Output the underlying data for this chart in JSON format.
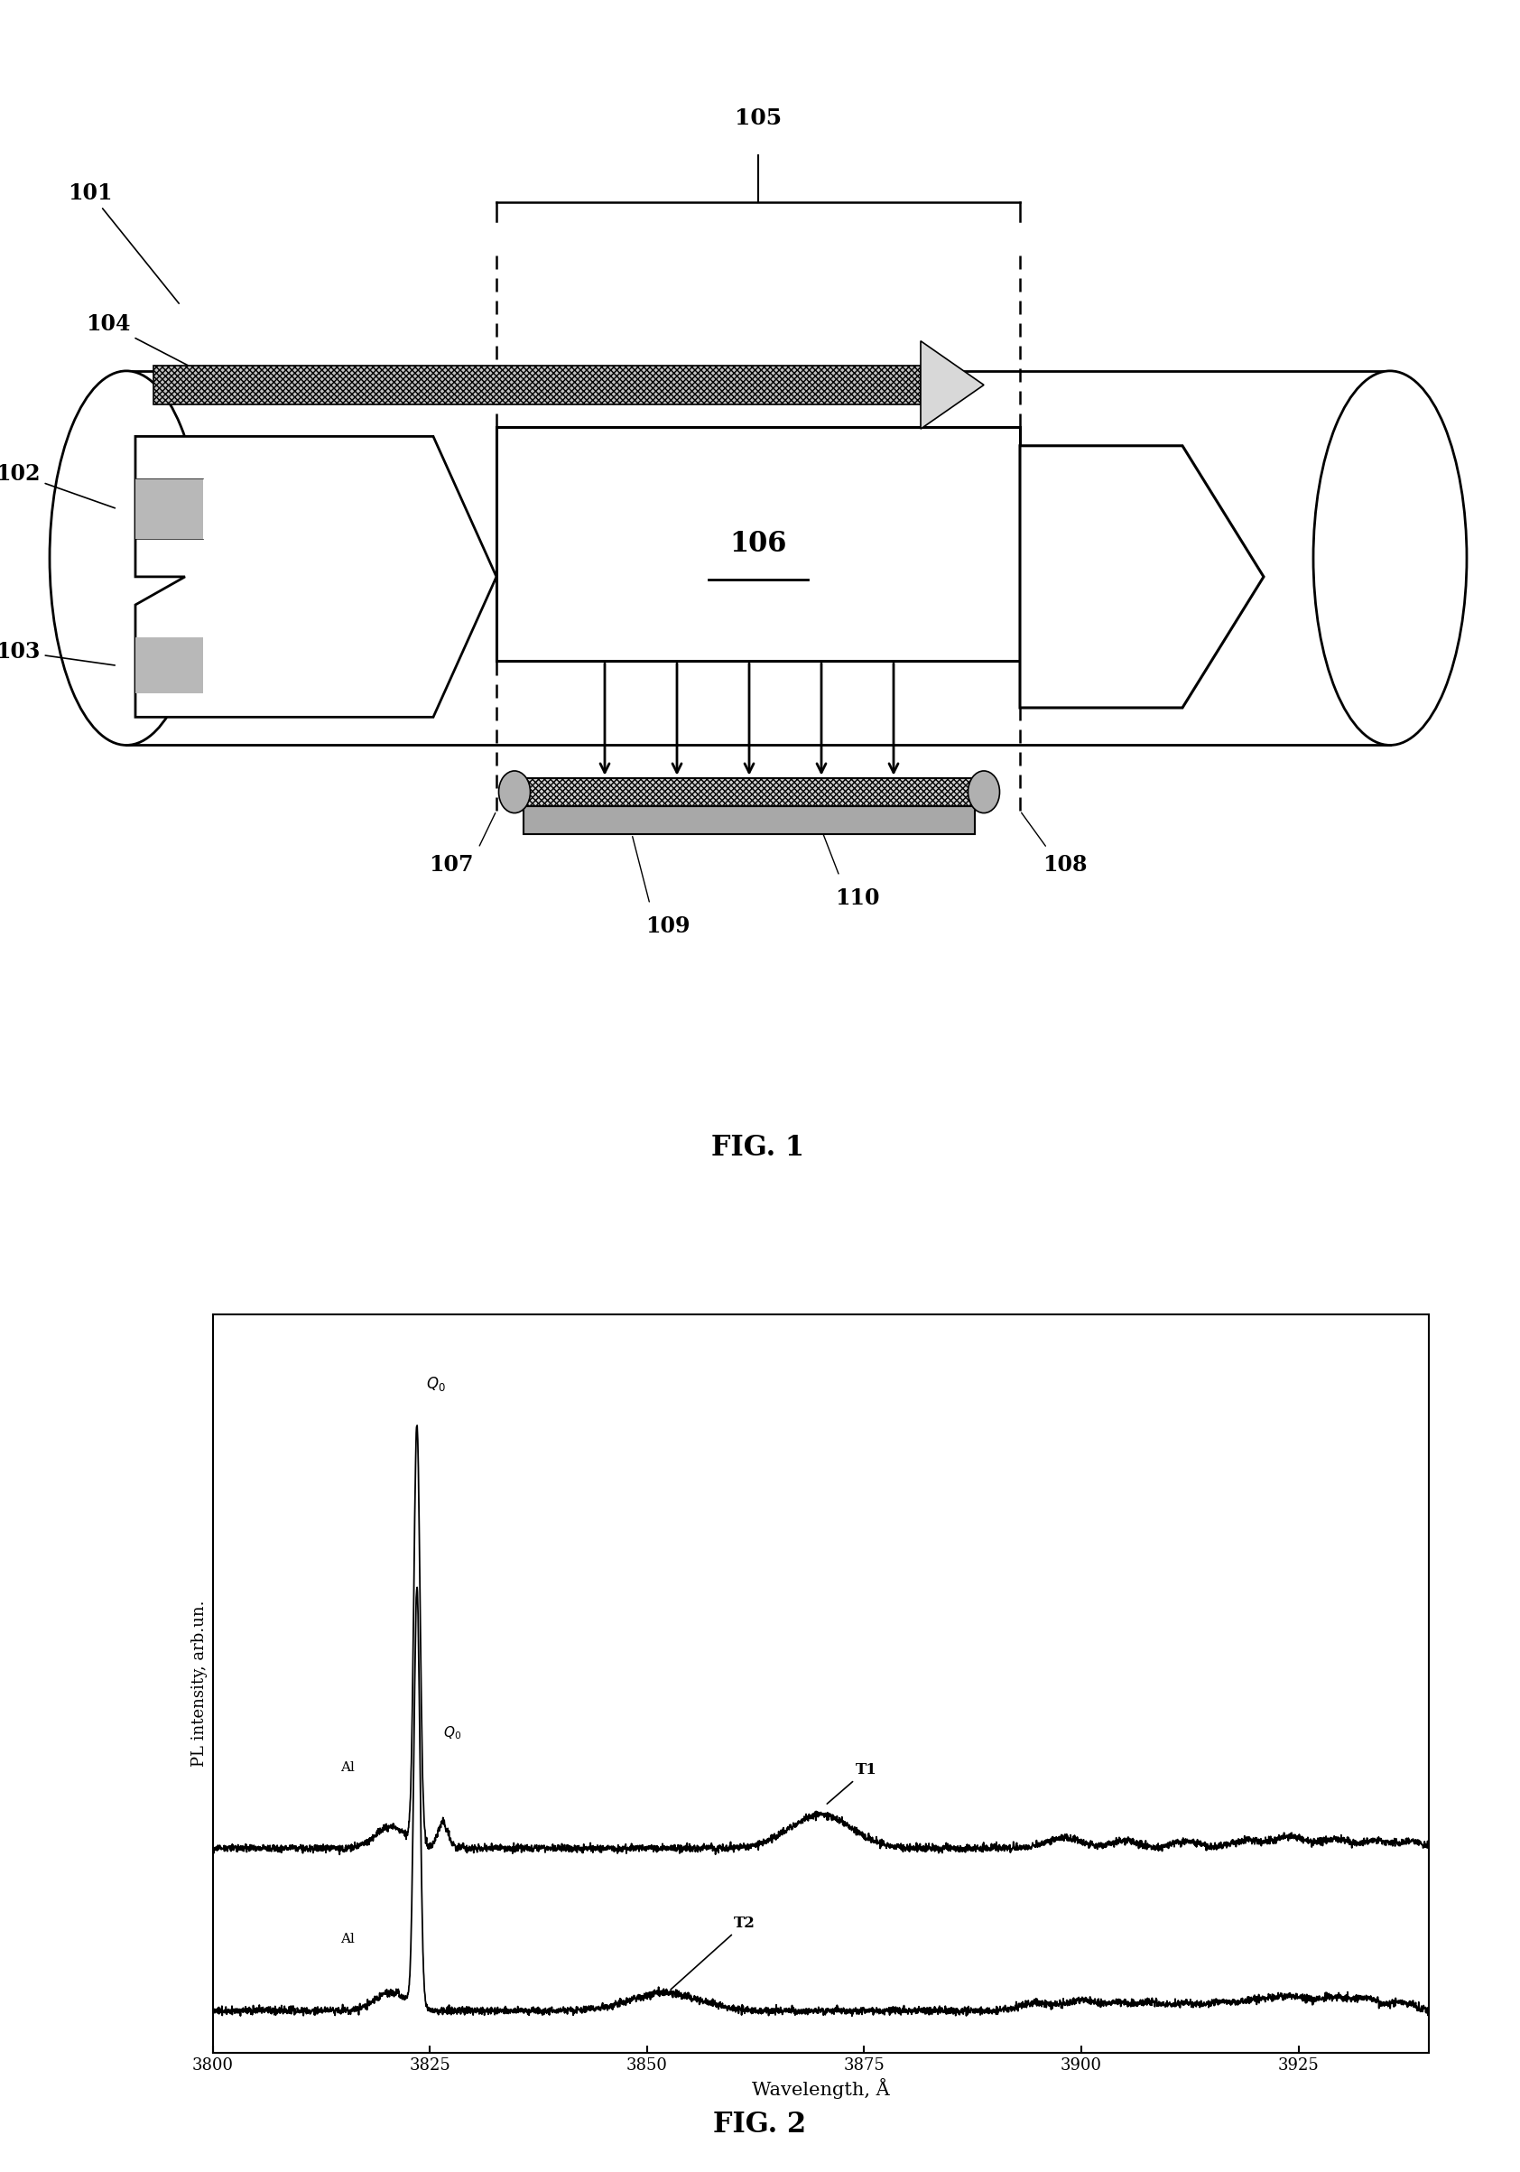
{
  "fig1": {
    "title": "FIG. 1",
    "tube_color": "#ffffff",
    "box_color": "#ffffff",
    "arrow_gray": "#c8c8c8",
    "arrow_dark_gray": "#909090"
  },
  "fig2": {
    "title": "FIG. 2",
    "xlabel": "Wavelength, Å",
    "ylabel": "PL intensity, arb.un.",
    "xlim": [
      3800,
      3940
    ],
    "xticks": [
      3800,
      3825,
      3850,
      3875,
      3900,
      3925
    ]
  }
}
